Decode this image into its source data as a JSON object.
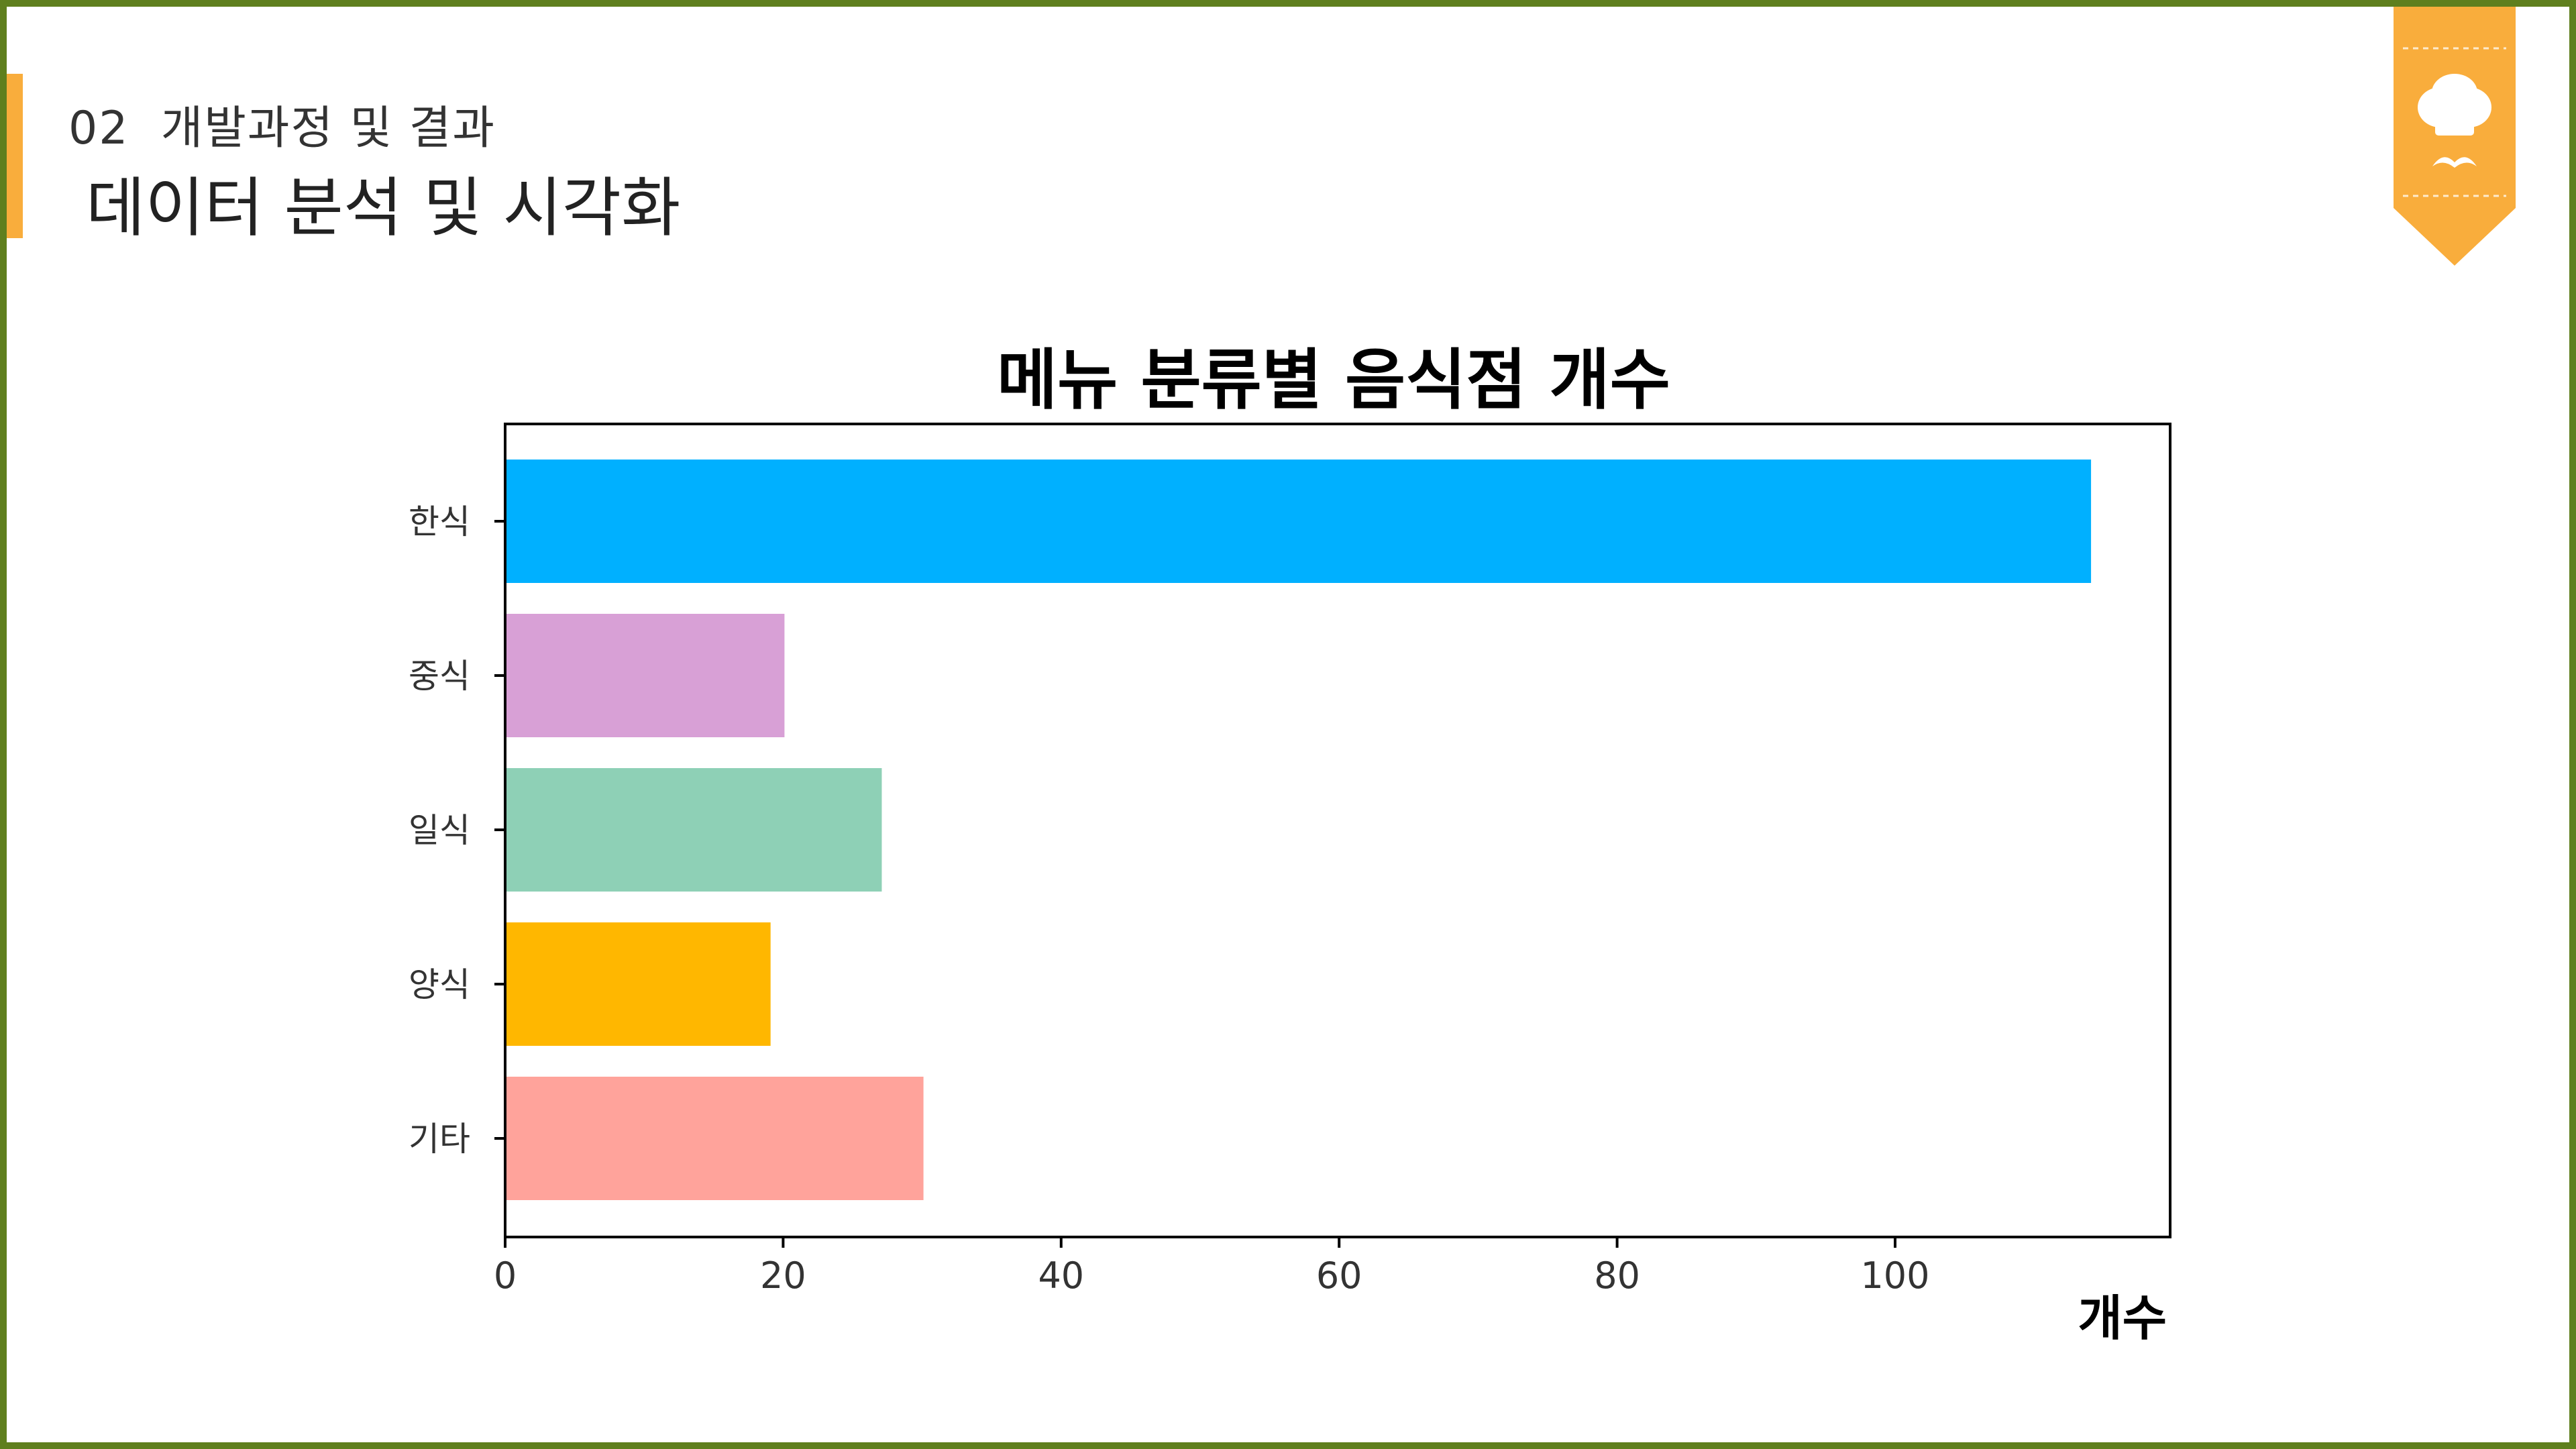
{
  "header": {
    "section_label": "02  개발과정 및 결과",
    "page_title": "데이터 분석 및 시각화"
  },
  "icons": {
    "ribbon": "chef-hat-mustache-icon"
  },
  "colors": {
    "frame": "#5f7f1e",
    "accent": "#f9ad3c"
  },
  "chart_data": {
    "type": "bar",
    "orientation": "horizontal",
    "title": "메뉴 분류별 음식점 개수",
    "xlabel": "개수",
    "ylabel": "",
    "categories": [
      "한식",
      "중식",
      "일식",
      "양식",
      "기타"
    ],
    "values": [
      114,
      20,
      27,
      19,
      30
    ],
    "colors": [
      "#00b0ff",
      "#d8a0d6",
      "#8ed0b6",
      "#ffb700",
      "#ffa39b"
    ],
    "xlim": [
      0,
      120
    ],
    "xticks": [
      0,
      20,
      40,
      60,
      80,
      100
    ],
    "grid": false,
    "legend": "none"
  }
}
